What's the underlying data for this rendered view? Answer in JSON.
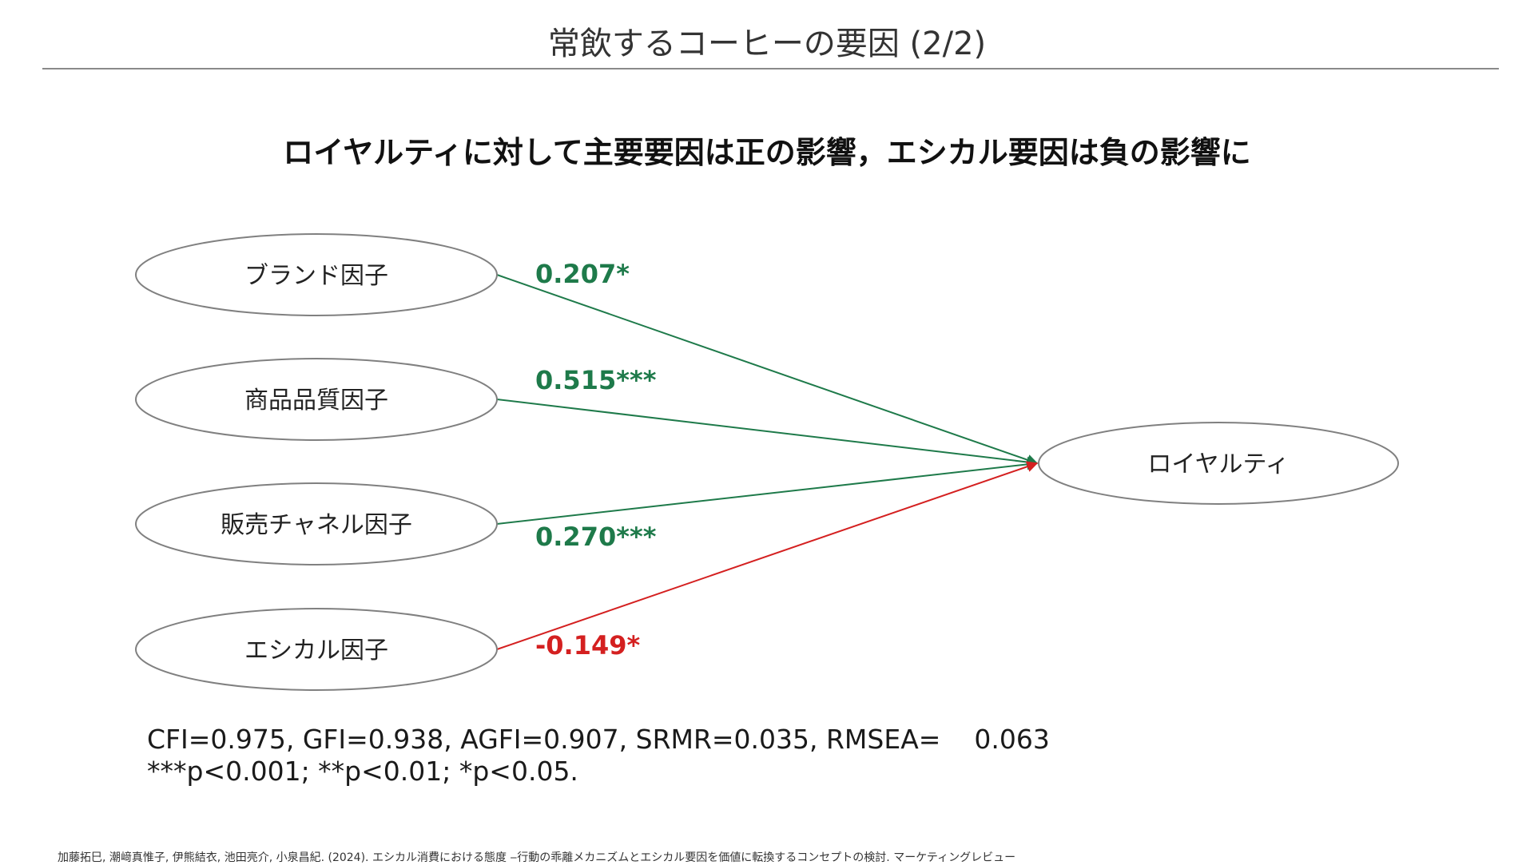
{
  "slide": {
    "title": "常飲するコーヒーの要因 (2/2)",
    "headline": "ロイヤルティに対して主要要因は正の影響，エシカル要因は負の影響に"
  },
  "diagram": {
    "factors": [
      {
        "label": "ブランド因子",
        "coefficient": "0.207*",
        "sign": "positive"
      },
      {
        "label": "商品品質因子",
        "coefficient": "0.515***",
        "sign": "positive"
      },
      {
        "label": "販売チャネル因子",
        "coefficient": "0.270***",
        "sign": "positive"
      },
      {
        "label": "エシカル因子",
        "coefficient": "-0.149*",
        "sign": "negative"
      }
    ],
    "outcome": {
      "label": "ロイヤルティ"
    },
    "colors": {
      "positive": "#1e7a4a",
      "negative": "#d42020",
      "node_stroke": "#808080"
    }
  },
  "notes": {
    "fit": "CFI=0.975, GFI=0.938, AGFI=0.907, SRMR=0.035, RMSEA=    0.063",
    "significance": "***p<0.001; **p<0.01; *p<0.05."
  },
  "citation": "加藤拓巳, 潮﨑真惟子, 伊熊結衣, 池田亮介, 小泉昌紀. (2024). エシカル消費における態度 ‒行動の乖離メカニズムとエシカル要因を価値に転換するコンセプトの検討. マーケティングレビュー"
}
